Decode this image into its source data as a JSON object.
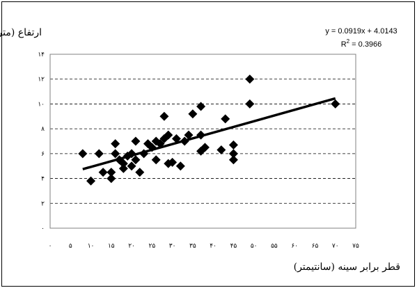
{
  "chart_data": {
    "type": "scatter",
    "ylabel": "ارتفاع (متر)",
    "xlabel": "قطر برابر سینه (سانتیمتر)",
    "equation": "y = 0.0919x + 4.0143",
    "r2_prefix": "R",
    "r2_exp": "2",
    "r2_suffix": " = 0.3966",
    "xlim": [
      0,
      75
    ],
    "ylim": [
      0,
      14
    ],
    "x_ticks": [
      0,
      5,
      10,
      15,
      20,
      25,
      30,
      35,
      40,
      45,
      50,
      55,
      60,
      65,
      70,
      75
    ],
    "x_tick_labels": [
      "۰",
      "۵",
      "۱۰",
      "۱۵",
      "۲۰",
      "۲۵",
      "۳۰",
      "۳۵",
      "۴۰",
      "۴۵",
      "۵۰",
      "۵۵",
      "۶۰",
      "۶۵",
      "۷۰",
      "۷۵"
    ],
    "y_ticks": [
      0,
      2,
      4,
      6,
      8,
      10,
      12,
      14
    ],
    "y_tick_labels": [
      "۰",
      "۲",
      "۴",
      "۶",
      "۸",
      "۱۰",
      "۱۲",
      "۱۴"
    ],
    "grid": "horizontal-dashed",
    "marker": "diamond",
    "marker_color": "#000000",
    "trendline": {
      "slope": 0.0919,
      "intercept": 4.0143,
      "x_range": [
        8,
        70
      ]
    },
    "points": [
      {
        "x": 8,
        "y": 6.0
      },
      {
        "x": 10,
        "y": 3.8
      },
      {
        "x": 12,
        "y": 6.0
      },
      {
        "x": 13,
        "y": 4.5
      },
      {
        "x": 15,
        "y": 4.0
      },
      {
        "x": 15,
        "y": 4.5
      },
      {
        "x": 16,
        "y": 6.8
      },
      {
        "x": 16,
        "y": 6.0
      },
      {
        "x": 17,
        "y": 5.5
      },
      {
        "x": 18,
        "y": 4.8
      },
      {
        "x": 18,
        "y": 5.2
      },
      {
        "x": 19,
        "y": 5.8
      },
      {
        "x": 20,
        "y": 5.0
      },
      {
        "x": 20,
        "y": 6.0
      },
      {
        "x": 21,
        "y": 7.0
      },
      {
        "x": 21,
        "y": 5.5
      },
      {
        "x": 22,
        "y": 4.5
      },
      {
        "x": 23,
        "y": 6.0
      },
      {
        "x": 24,
        "y": 6.8
      },
      {
        "x": 25,
        "y": 6.5
      },
      {
        "x": 26,
        "y": 5.5
      },
      {
        "x": 26,
        "y": 7.0
      },
      {
        "x": 27,
        "y": 6.8
      },
      {
        "x": 28,
        "y": 7.2
      },
      {
        "x": 28,
        "y": 9.0
      },
      {
        "x": 29,
        "y": 5.2
      },
      {
        "x": 29,
        "y": 7.5
      },
      {
        "x": 30,
        "y": 5.3
      },
      {
        "x": 31,
        "y": 7.2
      },
      {
        "x": 32,
        "y": 5.0
      },
      {
        "x": 33,
        "y": 7.0
      },
      {
        "x": 34,
        "y": 7.5
      },
      {
        "x": 35,
        "y": 9.2
      },
      {
        "x": 37,
        "y": 6.2
      },
      {
        "x": 37,
        "y": 7.5
      },
      {
        "x": 37,
        "y": 9.8
      },
      {
        "x": 38,
        "y": 6.5
      },
      {
        "x": 42,
        "y": 6.3
      },
      {
        "x": 43,
        "y": 8.8
      },
      {
        "x": 45,
        "y": 5.5
      },
      {
        "x": 45,
        "y": 6.0
      },
      {
        "x": 45,
        "y": 6.7
      },
      {
        "x": 49,
        "y": 10.0
      },
      {
        "x": 49,
        "y": 12.0
      },
      {
        "x": 70,
        "y": 10.0
      }
    ]
  }
}
